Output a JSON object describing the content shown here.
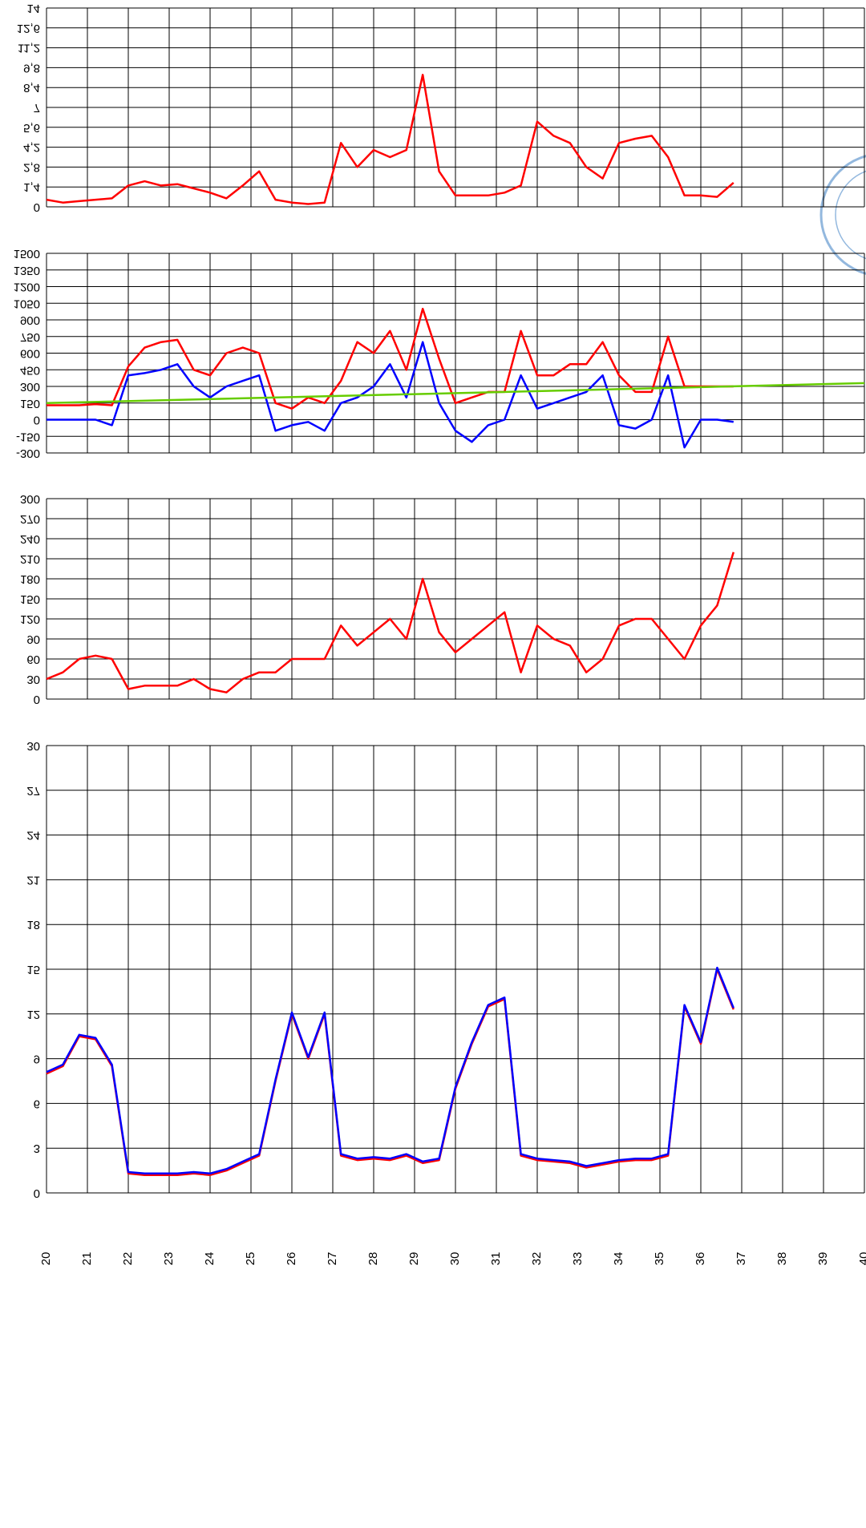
{
  "chart_data": [
    {
      "type": "line",
      "x": [
        20,
        20.4,
        20.8,
        21.2,
        21.6,
        22,
        22.4,
        22.8,
        23.2,
        23.6,
        24,
        24.4,
        24.8,
        25.2,
        25.6,
        26,
        26.4,
        26.8,
        27.2,
        27.6,
        28,
        28.4,
        28.8,
        29.2,
        29.6,
        30,
        30.4,
        30.8,
        31.2,
        31.6,
        32,
        32.4,
        32.8,
        33.2,
        33.6,
        34,
        34.4,
        34.8,
        35.2,
        35.6,
        36,
        36.4,
        36.8
      ],
      "series": [
        {
          "color": "#ff0000",
          "values": [
            0.5,
            0.3,
            0.4,
            0.5,
            0.6,
            1.5,
            1.8,
            1.5,
            1.6,
            1.3,
            1.0,
            0.6,
            1.5,
            2.5,
            0.5,
            0.3,
            0.2,
            0.3,
            4.5,
            2.8,
            4.0,
            3.5,
            4.0,
            9.3,
            2.5,
            0.8,
            0.8,
            0.8,
            1.0,
            1.5,
            6.0,
            5.0,
            4.5,
            2.8,
            2.0,
            4.5,
            4.8,
            5.0,
            3.5,
            0.8,
            0.8,
            0.7,
            1.7
          ]
        }
      ],
      "xlim": [
        20,
        40
      ],
      "ylim": [
        0,
        14
      ],
      "yticks": [
        0,
        {
          "value": 1.4,
          "label": "1,4"
        },
        {
          "value": 2.8,
          "label": "2,8"
        },
        {
          "value": 4.2,
          "label": "4,2"
        },
        {
          "value": 5.6,
          "label": "5,6"
        },
        7,
        {
          "value": 8.4,
          "label": "8,4"
        },
        {
          "value": 9.8,
          "label": "9,8"
        },
        {
          "value": 11.2,
          "label": "11,2"
        },
        {
          "value": 12.6,
          "label": "12,6"
        },
        14
      ],
      "grid": true
    },
    {
      "type": "line",
      "x": [
        20,
        20.4,
        20.8,
        21.2,
        21.6,
        22,
        22.4,
        22.8,
        23.2,
        23.6,
        24,
        24.4,
        24.8,
        25.2,
        25.6,
        26,
        26.4,
        26.8,
        27.2,
        27.6,
        28,
        28.4,
        28.8,
        29.2,
        29.6,
        30,
        30.4,
        30.8,
        31.2,
        31.6,
        32,
        32.4,
        32.8,
        33.2,
        33.6,
        34,
        34.4,
        34.8,
        35.2,
        35.6,
        36,
        36.4,
        36.8
      ],
      "series": [
        {
          "color": "#ff0000",
          "values": [
            130,
            130,
            130,
            140,
            130,
            480,
            650,
            700,
            720,
            450,
            400,
            600,
            650,
            600,
            150,
            100,
            200,
            150,
            350,
            700,
            600,
            800,
            450,
            1000,
            550,
            150,
            200,
            250,
            250,
            800,
            400,
            400,
            500,
            500,
            700,
            400,
            250,
            250,
            750,
            300,
            300,
            300,
            300
          ]
        },
        {
          "color": "#0000ff",
          "values": [
            0,
            0,
            0,
            0,
            -50,
            400,
            420,
            450,
            500,
            300,
            200,
            300,
            350,
            400,
            -100,
            -50,
            -20,
            -100,
            150,
            200,
            300,
            500,
            200,
            700,
            150,
            -100,
            -200,
            -50,
            0,
            400,
            100,
            150,
            200,
            250,
            400,
            -50,
            -80,
            0,
            400,
            -250,
            0,
            0,
            -20
          ]
        },
        {
          "color": "#66cc00",
          "x": [
            20,
            40
          ],
          "values": [
            150,
            330
          ]
        }
      ],
      "xlim": [
        20,
        40
      ],
      "ylim": [
        -300,
        1500
      ],
      "yticks": [
        -300,
        -150,
        0,
        150,
        300,
        450,
        600,
        750,
        900,
        1050,
        1200,
        1350,
        1500
      ],
      "grid": true
    },
    {
      "type": "line",
      "x": [
        20,
        20.4,
        20.8,
        21.2,
        21.6,
        22,
        22.4,
        22.8,
        23.2,
        23.6,
        24,
        24.4,
        24.8,
        25.2,
        25.6,
        26,
        26.4,
        26.8,
        27.2,
        27.6,
        28,
        28.4,
        28.8,
        29.2,
        29.6,
        30,
        30.4,
        30.8,
        31.2,
        31.6,
        32,
        32.4,
        32.8,
        33.2,
        33.6,
        34,
        34.4,
        34.8,
        35.2,
        35.6,
        36,
        36.4,
        36.8
      ],
      "series": [
        {
          "color": "#ff0000",
          "values": [
            30,
            40,
            60,
            65,
            60,
            15,
            20,
            20,
            20,
            30,
            15,
            10,
            30,
            40,
            40,
            60,
            60,
            60,
            110,
            80,
            100,
            120,
            90,
            180,
            100,
            70,
            90,
            110,
            130,
            40,
            110,
            90,
            80,
            40,
            60,
            110,
            120,
            120,
            90,
            60,
            110,
            140,
            220
          ]
        }
      ],
      "xlim": [
        20,
        40
      ],
      "ylim": [
        0,
        300
      ],
      "yticks": [
        0,
        30,
        60,
        90,
        120,
        150,
        180,
        210,
        240,
        270,
        300
      ],
      "grid": true
    },
    {
      "type": "line",
      "x": [
        20,
        20.4,
        20.8,
        21.2,
        21.6,
        22,
        22.4,
        22.8,
        23.2,
        23.6,
        24,
        24.4,
        24.8,
        25.2,
        25.6,
        26,
        26.4,
        26.8,
        27.2,
        27.6,
        28,
        28.4,
        28.8,
        29.2,
        29.6,
        30,
        30.4,
        30.8,
        31.2,
        31.6,
        32,
        32.4,
        32.8,
        33.2,
        33.6,
        34,
        34.4,
        34.8,
        35.2,
        35.6,
        36,
        36.4,
        36.8
      ],
      "series": [
        {
          "color": "#ff0000",
          "values": [
            8.0,
            8.5,
            10.5,
            10.3,
            8.5,
            1.3,
            1.2,
            1.2,
            1.2,
            1.3,
            1.2,
            1.5,
            2.0,
            2.5,
            7.5,
            12.0,
            9.0,
            12.0,
            2.5,
            2.2,
            2.3,
            2.2,
            2.5,
            2.0,
            2.2,
            7.0,
            10.0,
            12.5,
            13.0,
            2.5,
            2.2,
            2.1,
            2.0,
            1.7,
            1.9,
            2.1,
            2.2,
            2.2,
            2.5,
            12.5,
            10.0,
            15.0,
            12.3
          ]
        },
        {
          "color": "#0000ff",
          "values": [
            8.1,
            8.6,
            10.6,
            10.4,
            8.6,
            1.4,
            1.3,
            1.3,
            1.3,
            1.4,
            1.3,
            1.6,
            2.1,
            2.6,
            7.6,
            12.1,
            9.1,
            12.1,
            2.6,
            2.3,
            2.4,
            2.3,
            2.6,
            2.1,
            2.3,
            7.1,
            10.1,
            12.6,
            13.1,
            2.6,
            2.3,
            2.2,
            2.1,
            1.8,
            2.0,
            2.2,
            2.3,
            2.3,
            2.6,
            12.6,
            10.1,
            15.1,
            12.4
          ]
        }
      ],
      "xlim": [
        20,
        40
      ],
      "ylim": [
        0,
        30
      ],
      "yticks": [
        0,
        3,
        6,
        9,
        12,
        15,
        18,
        21,
        24,
        27,
        30
      ],
      "xticks": [
        20,
        21,
        22,
        23,
        24,
        25,
        26,
        27,
        28,
        29,
        30,
        31,
        32,
        33,
        34,
        35,
        36,
        37,
        38,
        39,
        40
      ],
      "grid": true
    }
  ]
}
